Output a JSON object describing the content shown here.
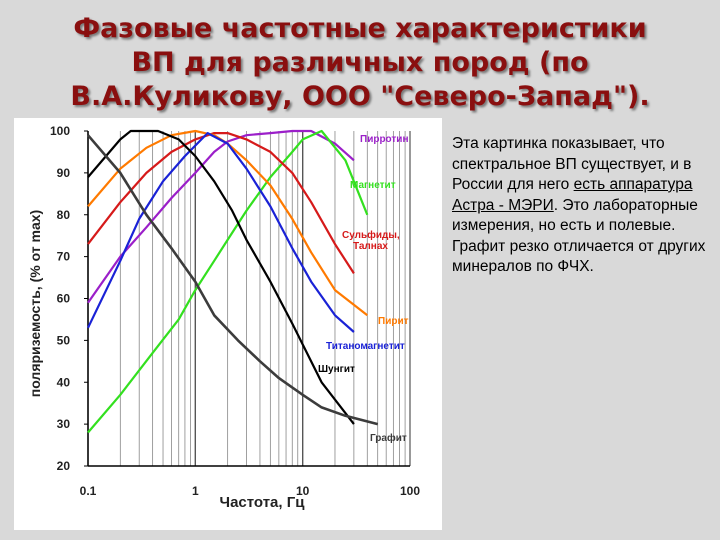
{
  "slide": {
    "title_lines": [
      "Фазовые частотные характеристики",
      "ВП для различных пород (по",
      "В.А.Куликову, ООО \"Северо-Запад\")."
    ]
  },
  "side_text": {
    "part1": "Эта картинка показывает, что спектральное ВП существует, и в России для него ",
    "part2": "есть аппаратура Астра - МЭРИ",
    "part3": ". Это лабораторные измерения, но есть и полевые. Графит резко отличается от других минералов по ФЧХ."
  },
  "chart_data": {
    "type": "line",
    "xlabel": "Частота, Гц",
    "ylabel": "поляриземость, (% от max)",
    "x_scale": "log",
    "xlim": [
      0.1,
      100
    ],
    "ylim": [
      20,
      100
    ],
    "x_ticks": [
      {
        "value": 0.1,
        "label": "0.1"
      },
      {
        "value": 1,
        "label": "1"
      },
      {
        "value": 10,
        "label": "10"
      },
      {
        "value": 100,
        "label": "100"
      }
    ],
    "y_ticks": [
      20,
      30,
      40,
      50,
      60,
      70,
      80,
      90,
      100
    ],
    "grid": "vertical",
    "series": [
      {
        "name": "Пирротин",
        "color": "#9b1fc9",
        "x": [
          0.1,
          0.2,
          0.35,
          0.6,
          1,
          1.5,
          2,
          3,
          5,
          8,
          12,
          20,
          30
        ],
        "y": [
          59,
          70,
          77,
          84,
          90,
          95,
          97.5,
          99,
          99.5,
          100,
          100,
          97,
          93
        ]
      },
      {
        "name": "Магнетит",
        "color": "#33e01f",
        "x": [
          0.1,
          0.2,
          0.4,
          0.7,
          1,
          1.5,
          2,
          3,
          5,
          8,
          10,
          15,
          25,
          40
        ],
        "y": [
          28,
          37,
          47,
          55,
          62,
          69,
          74,
          81,
          89,
          95,
          98,
          100,
          93,
          80
        ]
      },
      {
        "name": "Сульфиды, Талнах",
        "color": "#d61a1a",
        "x": [
          0.1,
          0.2,
          0.35,
          0.6,
          1,
          1.5,
          2,
          3,
          5,
          8,
          12,
          20,
          30
        ],
        "y": [
          73,
          83,
          90,
          95,
          98,
          99.5,
          99.5,
          98,
          95,
          90,
          83,
          73,
          66
        ]
      },
      {
        "name": "Пирит",
        "color": "#ff7a00",
        "x": [
          0.1,
          0.2,
          0.35,
          0.6,
          1,
          1.5,
          2,
          3,
          5,
          8,
          12,
          20,
          40
        ],
        "y": [
          82,
          91,
          96,
          99,
          100,
          99,
          97,
          93,
          87,
          79,
          71,
          62,
          56
        ]
      },
      {
        "name": "Титаномагнетит",
        "color": "#1a22d6",
        "x": [
          0.1,
          0.2,
          0.3,
          0.5,
          0.8,
          1.3,
          2,
          3,
          5,
          8,
          12,
          20,
          30
        ],
        "y": [
          53,
          69,
          79,
          88,
          94,
          99.5,
          97,
          91,
          82,
          72,
          64,
          56,
          52
        ]
      },
      {
        "name": "Шунгит",
        "color": "#000000",
        "x": [
          0.1,
          0.2,
          0.25,
          0.45,
          0.7,
          1,
          1.5,
          2.2,
          3,
          5,
          8,
          15,
          30
        ],
        "y": [
          89,
          98,
          100,
          100,
          98,
          94,
          88,
          81,
          74,
          64,
          54,
          40,
          30
        ]
      },
      {
        "name": "Графит",
        "color": "#3c3c3c",
        "x": [
          0.1,
          0.2,
          0.35,
          0.6,
          1,
          1.5,
          2.5,
          4,
          6,
          10,
          15,
          25,
          50
        ],
        "y": [
          99,
          90,
          80,
          72,
          64,
          56,
          50,
          45,
          41,
          37,
          34,
          32,
          30
        ]
      }
    ],
    "labels": [
      {
        "text": "Пирротин",
        "series": 0
      },
      {
        "text": "Магнетит",
        "series": 1
      },
      {
        "text": "Сульфиды,",
        "series": 2
      },
      {
        "text": "Талнах",
        "series": 2
      },
      {
        "text": "Пирит",
        "series": 3
      },
      {
        "text": "Титаномагнетит",
        "series": 4
      },
      {
        "text": "Шунгит",
        "series": 5
      },
      {
        "text": "Графит",
        "series": 6
      }
    ]
  }
}
